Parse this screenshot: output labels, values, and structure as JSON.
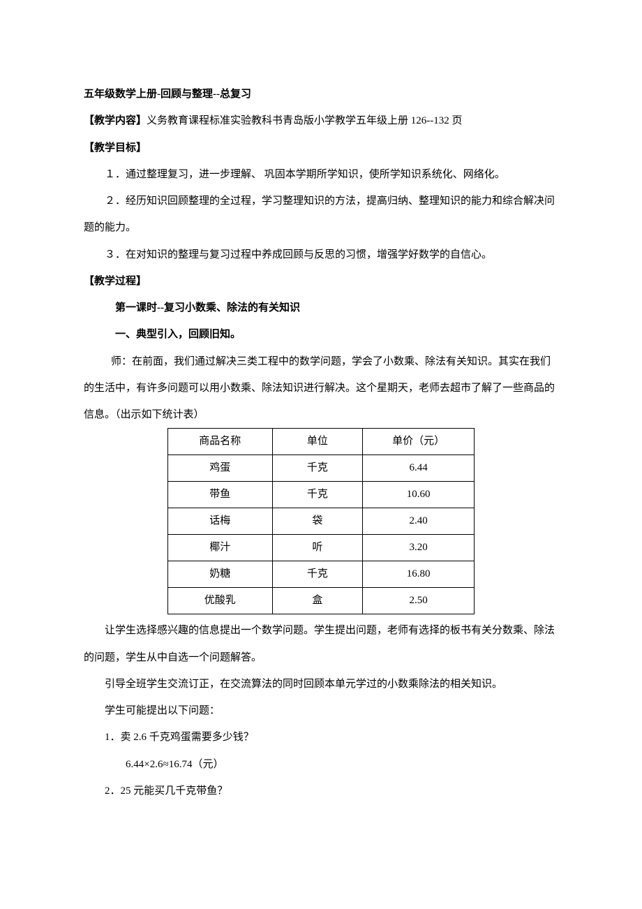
{
  "doc_title": "五年级数学上册-回顾与整理--总复习",
  "sections": {
    "content_label": "【教学内容】",
    "content_text": "义务教育课程标准实验教科书青岛版小学教学五年级上册 126--132 页",
    "goal_label": "【教学目标】",
    "goal_1": "１．通过整理复习，进一步理解、 巩固本学期所学知识，使所学知识系统化、网络化。",
    "goal_2": "２．经历知识回顾整理的全过程，学习整理知识的方法，提高归纳、整理知识的能力和综合解决问题的能力。",
    "goal_3": "３．在对知识的整理与复习过程中养成回顾与反思的习惯，增强学好数学的自信心。",
    "process_label": "【教学过程】",
    "lesson_title": "第一课时--复习小数乘、除法的有关知识",
    "part1_title": "一、典型引入，回顾旧知。",
    "intro_1": "师：在前面，我们通过解决三类工程中的数学问题，学会了小数乘、除法有关知识。其实在我们的生活中，有许多问题可以用小数乘、除法知识进行解决。这个星期天，老师去超市了解了一些商品的信息。（出示如下统计表）",
    "after_table_1": "让学生选择感兴趣的信息提出一个数学问题。学生提出问题，老师有选择的板书有关分数乘、除法的问题，学生从中自选一个问题解答。",
    "after_table_2": "引导全班学生交流订正，在交流算法的同时回顾本单元学过的小数乘除法的相关知识。",
    "after_table_3": "学生可能提出以下问题：",
    "q1": "1．卖 2.6 千克鸡蛋需要多少钱？",
    "q1_calc": "6.44×2.6≈16.74（元）",
    "q2": "2．25 元能买几千克带鱼？"
  },
  "table": {
    "headers": [
      "商品名称",
      "单位",
      "单价（元）"
    ],
    "rows": [
      [
        "鸡蛋",
        "千克",
        "6.44"
      ],
      [
        "带鱼",
        "千克",
        "10.60"
      ],
      [
        "话梅",
        "袋",
        "2.40"
      ],
      [
        "椰汁",
        "听",
        "3.20"
      ],
      [
        "奶糖",
        "千克",
        "16.80"
      ],
      [
        "优酸乳",
        "盒",
        "2.50"
      ]
    ]
  }
}
